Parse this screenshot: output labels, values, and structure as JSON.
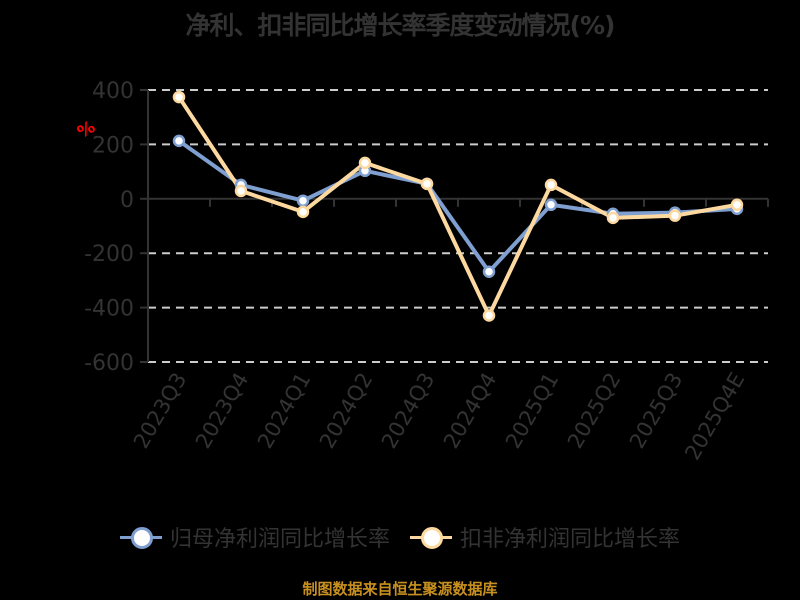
{
  "title": "净利、扣非同比增长率季度变动情况(%)",
  "ylabel_unit": "%",
  "footer": "制图数据来自恒生聚源数据库",
  "colors": {
    "series1": "#7f9fd1",
    "series2": "#fdd9a0",
    "axis": "#333333",
    "grid": "#cccccc",
    "footer": "#c8901f",
    "unit": "#ff0000"
  },
  "legend": [
    {
      "label": "归母净利润同比增长率",
      "color": "#7f9fd1"
    },
    {
      "label": "扣非净利润同比增长率",
      "color": "#fdd9a0"
    }
  ],
  "chart_data": {
    "type": "line",
    "title": "净利、扣非同比增长率季度变动情况(%)",
    "xlabel": "",
    "ylabel": "%",
    "ylim": [
      -600,
      400
    ],
    "yticks": [
      400,
      200,
      0,
      -200,
      -400,
      -600
    ],
    "grid": true,
    "legend_position": "bottom",
    "categories": [
      "2023Q3",
      "2023Q4",
      "2024Q1",
      "2024Q2",
      "2024Q3",
      "2024Q4",
      "2025Q1",
      "2025Q2",
      "2025Q3",
      "2025Q4E"
    ],
    "series": [
      {
        "name": "归母净利润同比增长率",
        "values": [
          213,
          51,
          -7,
          103,
          55,
          -268,
          -22,
          -55,
          -51,
          -37
        ]
      },
      {
        "name": "扣非净利润同比增长率",
        "values": [
          374,
          29,
          -48,
          132,
          55,
          -429,
          51,
          -70,
          -62,
          -22
        ]
      }
    ]
  }
}
